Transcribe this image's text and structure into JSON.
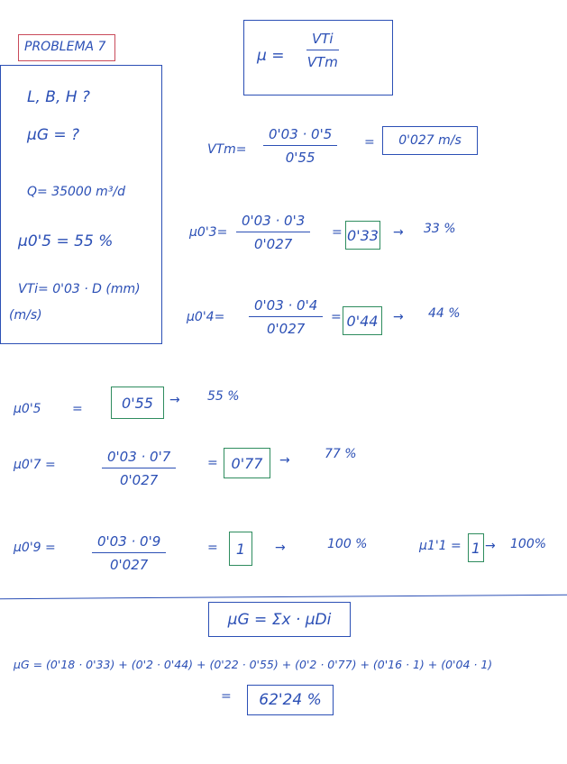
{
  "title": "PROBLEMA 7",
  "givens": {
    "unknowns_dims": "L, B, H ?",
    "unknown_mu": "μG = ?",
    "flow": "Q= 35000 m³/d",
    "mu_05": "μ0'5 = 55 %",
    "vti": "VTi= 0'03 · D (mm)",
    "vti_unit": "(m/s)"
  },
  "definition": {
    "lhs": "μ =",
    "num": "VTi",
    "den": "VTm"
  },
  "vtm": {
    "label": "VTm=",
    "num": "0'03 · 0'5",
    "den": "0'55",
    "eq": "=",
    "result": "0'027 m/s"
  },
  "rows": [
    {
      "label": "μ0'3=",
      "num": "0'03 · 0'3",
      "den": "0'027",
      "eq": "=",
      "result": "0'33",
      "arrow": "→",
      "percent": "33 %"
    },
    {
      "label": "μ0'4=",
      "num": "0'03 · 0'4",
      "den": "0'027",
      "eq": "=",
      "result": "0'44",
      "arrow": "→",
      "percent": "44 %"
    },
    {
      "label": "μ0'5",
      "eq": "=",
      "result": "0'55",
      "arrow": "→",
      "percent": "55 %"
    },
    {
      "label": "μ0'7 =",
      "num": "0'03 · 0'7",
      "den": "0'027",
      "eq": "=",
      "result": "0'77",
      "arrow": "→",
      "percent": "77 %"
    },
    {
      "label": "μ0'9 =",
      "num": "0'03 · 0'9",
      "den": "0'027",
      "eq": "=",
      "result": "1",
      "arrow": "→",
      "percent": "100 %"
    }
  ],
  "mu11": {
    "label": "μ1'1 =",
    "result": "1",
    "arrow": "→",
    "percent": "100%"
  },
  "global_formula": "μG = Σx · μDi",
  "global_calc": "μG = (0'18 · 0'33) + (0'2 · 0'44) + (0'22 · 0'55) + (0'2 · 0'77) + (0'16 · 1) + (0'04 · 1)",
  "global_result": {
    "eq": "=",
    "value": "62'24 %"
  },
  "colors": {
    "ink": "#2b4fb5",
    "title_box": "#c94a5a",
    "result_box": "#2e8c5e"
  }
}
